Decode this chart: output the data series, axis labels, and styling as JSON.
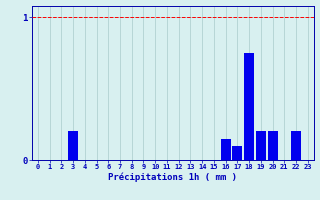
{
  "hours": [
    0,
    1,
    2,
    3,
    4,
    5,
    6,
    7,
    8,
    9,
    10,
    11,
    12,
    13,
    14,
    15,
    16,
    17,
    18,
    19,
    20,
    21,
    22,
    23
  ],
  "values": [
    0,
    0,
    0,
    0.2,
    0,
    0,
    0,
    0,
    0,
    0,
    0,
    0,
    0,
    0,
    0,
    0,
    0.15,
    0.1,
    0.75,
    0.2,
    0.2,
    0,
    0.2,
    0
  ],
  "bar_color": "#0000ee",
  "bg_color": "#d8f0f0",
  "grid_color": "#aacccc",
  "axis_color": "#0000aa",
  "tick_color": "#0000bb",
  "xlabel": "Précipitations 1h ( mm )",
  "ylim": [
    0,
    1.0
  ],
  "yticks": [
    0,
    1
  ],
  "ytick_labels": [
    "0",
    "1"
  ],
  "redline_y": 1.0
}
